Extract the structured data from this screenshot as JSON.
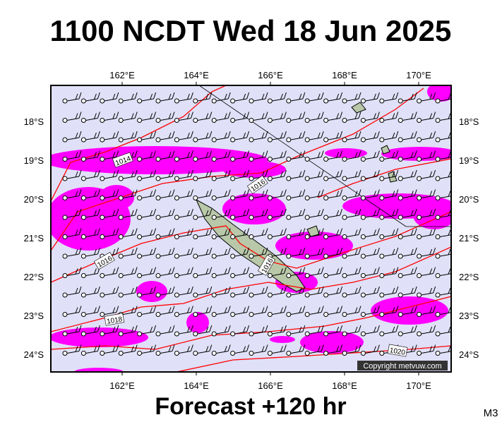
{
  "header": {
    "title": "1100 NCDT Wed 18 Jun 2025"
  },
  "map": {
    "lon_labels": [
      "162°E",
      "164°E",
      "166°E",
      "168°E",
      "170°E"
    ],
    "lat_labels": [
      "18°S",
      "19°S",
      "20°S",
      "21°S",
      "22°S",
      "23°S",
      "24°S"
    ],
    "isobar_labels": [
      "1014",
      "1016",
      "1016",
      "1016",
      "1018",
      "1020"
    ],
    "copyright": "Copyright metvuw.com"
  },
  "footer": {
    "forecast": "Forecast +120 hr",
    "code": "M3"
  }
}
